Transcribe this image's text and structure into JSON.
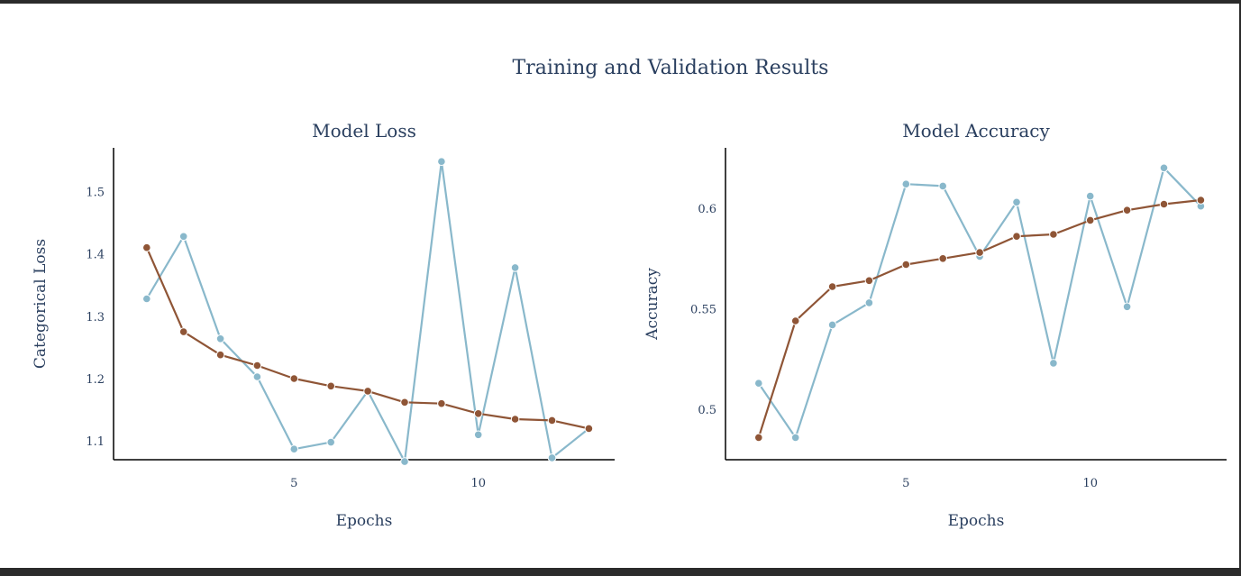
{
  "figure_title": "Training and Validation Results",
  "colors": {
    "training": "#8f5536",
    "validation": "#89b8cb",
    "text": "#2a3f5f"
  },
  "chart_data": [
    {
      "type": "line",
      "title": "Model Loss",
      "xlabel": "Epochs",
      "ylabel": "Categorical Loss",
      "xlim": [
        0.1,
        13.7
      ],
      "ylim": [
        1.07,
        1.57
      ],
      "xticks": [
        5,
        10
      ],
      "yticks": [
        1.1,
        1.2,
        1.3,
        1.4,
        1.5
      ],
      "x": [
        1,
        2,
        3,
        4,
        5,
        6,
        7,
        8,
        9,
        10,
        11,
        12,
        13
      ],
      "series": [
        {
          "key": "training",
          "values": [
            1.41,
            1.275,
            1.238,
            1.221,
            1.2,
            1.188,
            1.18,
            1.162,
            1.16,
            1.144,
            1.135,
            1.133,
            1.12
          ]
        },
        {
          "key": "validation",
          "values": [
            1.328,
            1.428,
            1.264,
            1.203,
            1.087,
            1.098,
            1.18,
            1.067,
            1.548,
            1.11,
            1.378,
            1.073,
            1.12
          ]
        }
      ]
    },
    {
      "type": "line",
      "title": "Model Accuracy",
      "xlabel": "Epochs",
      "ylabel": "Accuracy",
      "xlim": [
        0.1,
        13.7
      ],
      "ylim": [
        0.475,
        0.63
      ],
      "xticks": [
        5,
        10
      ],
      "yticks": [
        0.5,
        0.55,
        0.6
      ],
      "x": [
        1,
        2,
        3,
        4,
        5,
        6,
        7,
        8,
        9,
        10,
        11,
        12,
        13
      ],
      "series": [
        {
          "key": "training",
          "values": [
            0.486,
            0.544,
            0.561,
            0.564,
            0.572,
            0.575,
            0.578,
            0.586,
            0.587,
            0.594,
            0.599,
            0.602,
            0.604
          ]
        },
        {
          "key": "validation",
          "values": [
            0.513,
            0.486,
            0.542,
            0.553,
            0.612,
            0.611,
            0.576,
            0.603,
            0.523,
            0.606,
            0.551,
            0.62,
            0.601
          ]
        }
      ]
    }
  ]
}
